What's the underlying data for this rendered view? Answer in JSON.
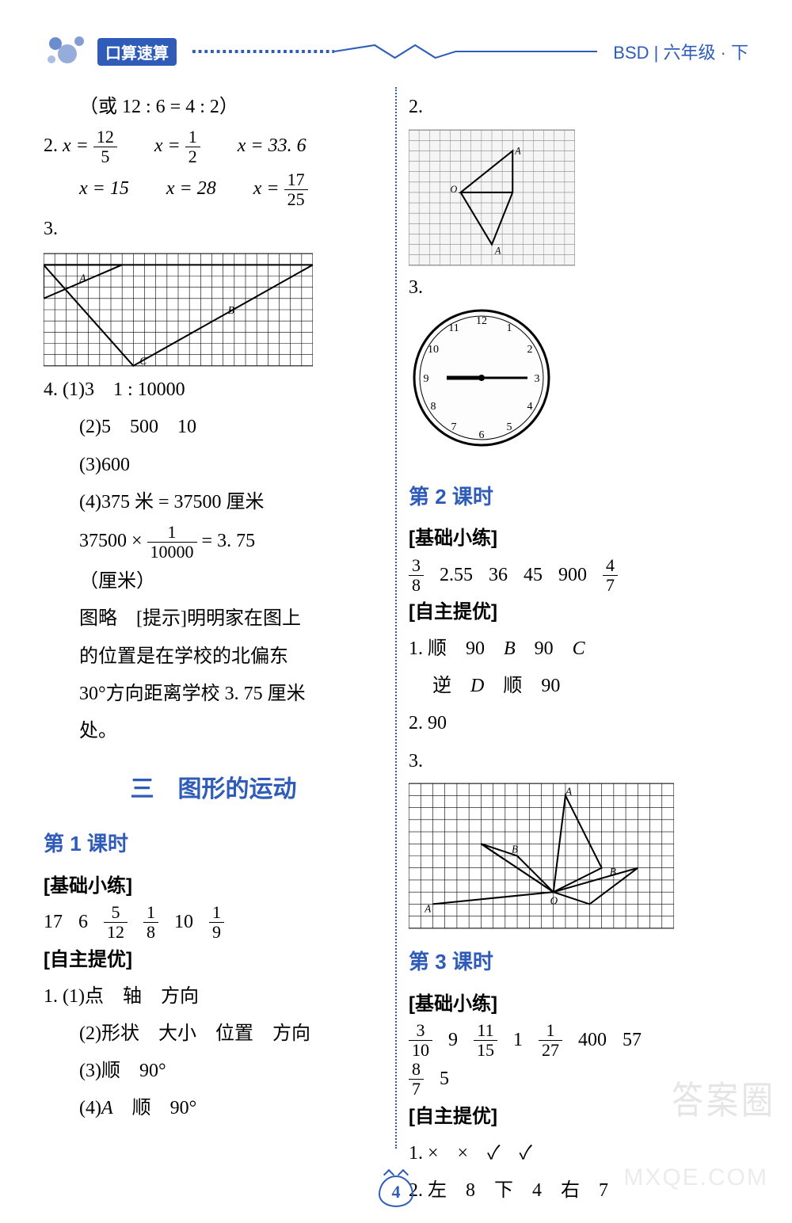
{
  "header": {
    "logo_text": "口算速算",
    "right_text": "BSD | 六年级 · 下"
  },
  "left": {
    "line0": "（或 12 : 6 = 4 : 2）",
    "q2": {
      "eq1_lhs": "x =",
      "eq1_num": "12",
      "eq1_den": "5",
      "eq2_lhs": "x =",
      "eq2_num": "1",
      "eq2_den": "2",
      "eq3": "x = 33. 6",
      "eq4": "x = 15",
      "eq5": "x = 28",
      "eq6_lhs": "x =",
      "eq6_num": "17",
      "eq6_den": "25"
    },
    "q3_label": "3.",
    "q4": {
      "l1": "(1)3　1 : 10000",
      "l2": "(2)5　500　10",
      "l3": "(3)600",
      "l4": "(4)375 米 = 37500 厘米",
      "l5a": "37500 ×",
      "l5_num": "1",
      "l5_den": "10000",
      "l5b": "= 3. 75",
      "l6": "（厘米）",
      "l7": "图略　[提示]明明家在图上",
      "l8": "的位置是在学校的北偏东",
      "l9": "30°方向距离学校 3. 75 厘米",
      "l10": "处。"
    },
    "section": "三　图形的运动",
    "lesson1": {
      "title": "第 1 课时",
      "basic_label": "[基础小练]",
      "basic": [
        "17",
        "6",
        {
          "n": "5",
          "d": "12"
        },
        {
          "n": "1",
          "d": "8"
        },
        "10",
        {
          "n": "1",
          "d": "9"
        }
      ],
      "self_label": "[自主提优]",
      "s1": "(1)点　轴　方向",
      "s2": "(2)形状　大小　位置　方向",
      "s3": "(3)顺　90°",
      "s4": "(4)A　顺　90°"
    }
  },
  "right": {
    "q2_label": "2.",
    "q3_label": "3.",
    "lesson2": {
      "title": "第 2 课时",
      "basic_label": "[基础小练]",
      "basic": [
        {
          "n": "3",
          "d": "8"
        },
        "2.55",
        "36",
        "45",
        "900",
        {
          "n": "4",
          "d": "7"
        }
      ],
      "self_label": "[自主提优]",
      "s1a": "1. 顺　90　",
      "s1b": "B",
      "s1c": "　90　",
      "s1d": "C",
      "s2a": "　 逆　",
      "s2b": "D",
      "s2c": "　顺　90",
      "s3": "2. 90",
      "s4_label": "3."
    },
    "lesson3": {
      "title": "第 3 课时",
      "basic_label": "[基础小练]",
      "basic_r1": [
        {
          "n": "3",
          "d": "10"
        },
        "9",
        {
          "n": "11",
          "d": "15"
        },
        "1",
        {
          "n": "1",
          "d": "27"
        },
        "400",
        "57"
      ],
      "basic_r2": [
        {
          "n": "8",
          "d": "7"
        },
        "5"
      ],
      "self_label": "[自主提优]",
      "s1": "1. ×　×　✓　✓",
      "s2": "2. 左　8　下　4　右　7"
    }
  },
  "page_number": "4",
  "watermark1": "答案圈",
  "watermark2": "MXQE.COM",
  "colors": {
    "accent": "#2e5cb8",
    "text": "#000000"
  },
  "figures": {
    "fig_left3": {
      "bg": "#ffffff",
      "grid": "#000",
      "cols": 24,
      "rows": 10,
      "cell": 14
    },
    "fig_r2": {
      "bg": "#f5f5f5",
      "grid": "#777",
      "cols": 16,
      "rows": 13,
      "cell": 13
    },
    "fig_r_l2_3": {
      "bg": "#ffffff",
      "grid": "#000",
      "cols": 22,
      "rows": 12,
      "cell": 15
    },
    "clock": {
      "radius": 85,
      "bg": "#fdfdfd",
      "border": "#000",
      "hour": 9,
      "min": 15
    }
  }
}
